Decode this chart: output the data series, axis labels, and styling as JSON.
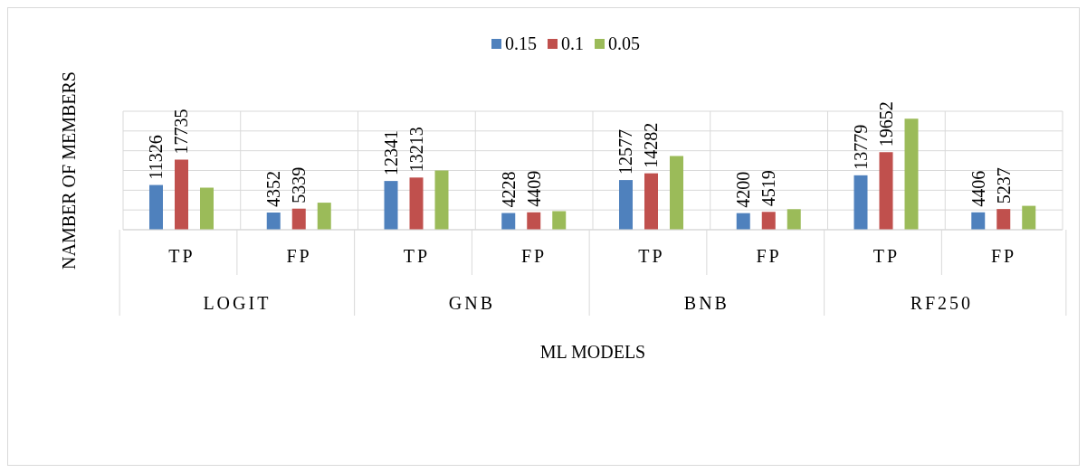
{
  "chart_data": {
    "type": "bar",
    "xlabel": "ML MODELS",
    "ylabel": "NAMBER OF  MEMBERS",
    "categories": [
      "TP",
      "FP",
      "TP",
      "FP",
      "TP",
      "FP",
      "TP",
      "FP"
    ],
    "annotations": [
      "LOGIT",
      "GNB",
      "BNB",
      "RF250"
    ],
    "series": [
      {
        "name": "0.15",
        "color": "#4f81bd",
        "values": [
          11326,
          4352,
          12341,
          4228,
          12577,
          4200,
          13779,
          4406
        ],
        "value_labels": [
          "11326",
          "4352",
          "12341",
          "4228",
          "12577",
          "4200",
          "13779",
          "4406"
        ]
      },
      {
        "name": "0.1",
        "color": "#c0504d",
        "values": [
          17735,
          5339,
          13213,
          4409,
          14282,
          4519,
          19652,
          5237
        ],
        "value_labels": [
          "17735",
          "5339",
          "13213",
          "4409",
          "14282",
          "4519",
          "19652",
          "5237"
        ]
      },
      {
        "name": "0.05",
        "color": "#9bbb59",
        "values": [
          10650,
          6850,
          15000,
          4700,
          18650,
          5200,
          28100,
          6050
        ]
      }
    ],
    "ylim": [
      0,
      30000
    ],
    "yticks": [
      {
        "value": 0,
        "label": null
      },
      {
        "value": 5000,
        "label": null
      },
      {
        "value": 10000,
        "label": null
      },
      {
        "value": 15000,
        "label": null
      },
      {
        "value": 20000,
        "label": null
      },
      {
        "value": 25000,
        "label": null
      },
      {
        "value": 30000,
        "label": null
      }
    ],
    "tick_labels": "x",
    "grid": true,
    "legend": "top"
  }
}
